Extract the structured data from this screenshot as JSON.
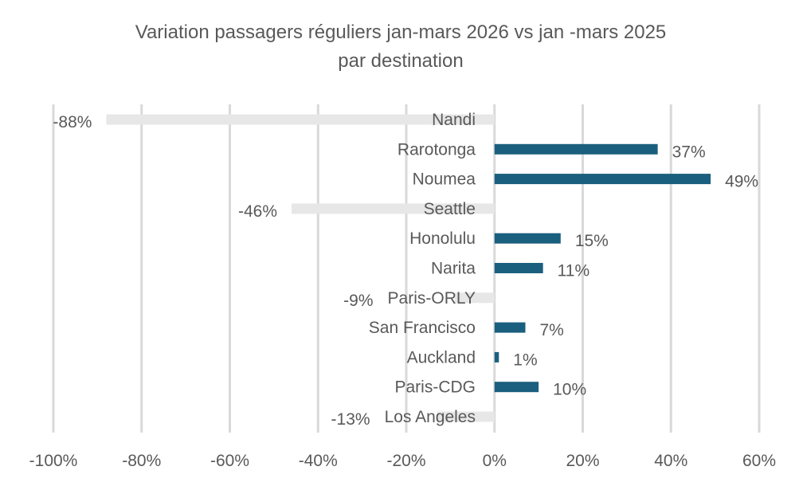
{
  "chart_data": {
    "type": "bar",
    "orientation": "horizontal",
    "title": "Variation passagers réguliers jan-mars 2026 vs jan -mars 2025",
    "subtitle": "par destination",
    "xlabel": "",
    "ylabel": "",
    "xlim": [
      -100,
      60
    ],
    "x_ticks": [
      "-100%",
      "-80%",
      "-60%",
      "-40%",
      "-20%",
      "0%",
      "20%",
      "40%",
      "60%"
    ],
    "x_tick_values": [
      -100,
      -80,
      -60,
      -40,
      -20,
      0,
      20,
      40,
      60
    ],
    "grid": true,
    "legend": "none",
    "categories": [
      "Nandi",
      "Rarotonga",
      "Noumea",
      "Seattle",
      "Honolulu",
      "Narita",
      "Paris-ORLY",
      "San Francisco",
      "Auckland",
      "Paris-CDG",
      "Los Angeles"
    ],
    "values": [
      -88,
      37,
      49,
      -46,
      15,
      11,
      -9,
      7,
      1,
      10,
      -13
    ],
    "data_labels": [
      "-88%",
      "37%",
      "49%",
      "-46%",
      "15%",
      "11%",
      "-9%",
      "7%",
      "1%",
      "10%",
      "-13%"
    ],
    "colors": {
      "positive": "#1b5f7e",
      "negative": "#e7e7e7",
      "grid": "#d9d9d9",
      "text": "#595959"
    }
  }
}
